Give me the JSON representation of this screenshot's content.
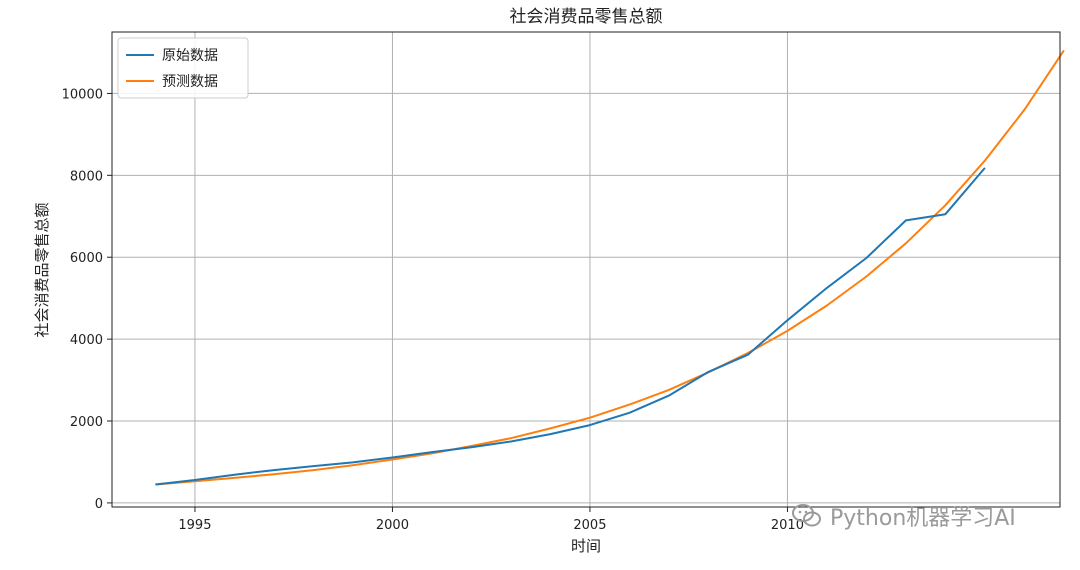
{
  "chart_data": {
    "type": "line",
    "title": "社会消费品零售总额",
    "xlabel": "时间",
    "ylabel": "社会消费品零售总额",
    "xlim": [
      1992.9,
      2016.9
    ],
    "ylim": [
      -100,
      11500
    ],
    "x_ticks": [
      1995,
      2000,
      2005,
      2010
    ],
    "y_ticks": [
      0,
      2000,
      4000,
      6000,
      8000,
      10000
    ],
    "grid": true,
    "legend_position": "top-left",
    "series": [
      {
        "name": "原始数据",
        "color": "#1f77b4",
        "x": [
          1994,
          1995,
          1996,
          1997,
          1998,
          1999,
          2000,
          2001,
          2002,
          2003,
          2004,
          2005,
          2006,
          2007,
          2008,
          2009,
          2010,
          2011,
          2012,
          2013,
          2014,
          2015
        ],
        "values": [
          450,
          560,
          690,
          800,
          900,
          990,
          1110,
          1240,
          1360,
          1500,
          1680,
          1900,
          2200,
          2620,
          3200,
          3620,
          4460,
          5250,
          5980,
          6900,
          7050,
          8180
        ]
      },
      {
        "name": "预测数据",
        "color": "#ff7f0e",
        "x": [
          1994,
          1995,
          1996,
          1997,
          1998,
          1999,
          2000,
          2001,
          2002,
          2003,
          2004,
          2005,
          2006,
          2007,
          2008,
          2009,
          2010,
          2011,
          2012,
          2013,
          2014,
          2015,
          2016,
          2017
        ],
        "values": [
          450,
          530,
          610,
          700,
          800,
          920,
          1060,
          1210,
          1390,
          1580,
          1820,
          2080,
          2400,
          2760,
          3190,
          3660,
          4200,
          4820,
          5530,
          6340,
          7270,
          8360,
          9600,
          11050
        ]
      }
    ]
  },
  "watermark": {
    "text": "Python机器学习AI",
    "icon": "wechat-icon"
  }
}
